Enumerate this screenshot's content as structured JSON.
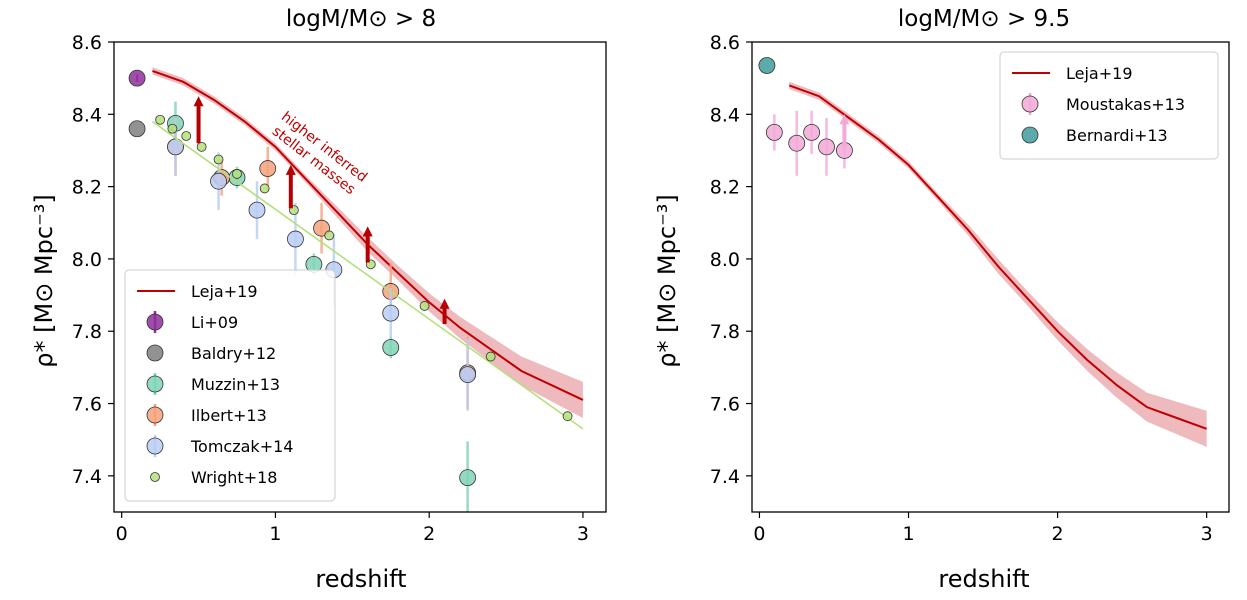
{
  "colors": {
    "leja": "#c00000",
    "leja_band": "#e9a3a8",
    "li09": "#8e2f9b",
    "baldry12": "#7f7f7f",
    "muzzin13": "#7fd3b7",
    "ilbert13": "#f4a27c",
    "tomczak14": "#b9cdf5",
    "wright18": "#b4e07a",
    "moustakas13": "#f3a9d8",
    "bernardi13": "#3e9c9c",
    "arrow_left": "#b40000",
    "arrow_right": "#f3a9d8"
  },
  "chart_data": [
    {
      "type": "scatter",
      "title": "logM/M⊙ > 8",
      "xlabel": "redshift",
      "ylabel": "ρ* [M⊙ Mpc⁻³]",
      "xlim": [
        -0.05,
        3.15
      ],
      "ylim": [
        7.3,
        8.6
      ],
      "xticks": [
        "0",
        "1",
        "2",
        "3"
      ],
      "yticks": [
        "7.4",
        "7.6",
        "7.8",
        "8.0",
        "8.2",
        "8.4",
        "8.6"
      ],
      "legend": "bottom-left",
      "annotation": [
        "higher inferred",
        "stellar masses"
      ],
      "series": [
        {
          "name": "Leja+19",
          "kind": "line",
          "color_key": "leja",
          "x": [
            0.2,
            0.4,
            0.6,
            0.8,
            1.0,
            1.2,
            1.4,
            1.6,
            1.8,
            2.0,
            2.2,
            2.4,
            2.6,
            2.8,
            3.0
          ],
          "y": [
            8.52,
            8.49,
            8.44,
            8.38,
            8.31,
            8.22,
            8.13,
            8.04,
            7.96,
            7.88,
            7.81,
            7.75,
            7.69,
            7.65,
            7.61
          ],
          "band": [
            0.01,
            0.01,
            0.01,
            0.01,
            0.01,
            0.01,
            0.015,
            0.02,
            0.02,
            0.025,
            0.03,
            0.035,
            0.04,
            0.045,
            0.05
          ]
        },
        {
          "name": "Li+09",
          "kind": "points",
          "color_key": "li09",
          "size": 8,
          "points": [
            {
              "x": 0.1,
              "y": 8.5,
              "err": 0.01
            }
          ]
        },
        {
          "name": "Baldry+12",
          "kind": "points",
          "color_key": "baldry12",
          "size": 8,
          "points": [
            {
              "x": 0.1,
              "y": 8.36,
              "err": 0.0
            }
          ]
        },
        {
          "name": "Muzzin+13",
          "kind": "points",
          "color_key": "muzzin13",
          "size": 8,
          "points": [
            {
              "x": 0.35,
              "y": 8.375,
              "err": 0.06
            },
            {
              "x": 0.75,
              "y": 8.225,
              "err": 0.03
            },
            {
              "x": 1.25,
              "y": 7.985,
              "err": 0.03
            },
            {
              "x": 1.75,
              "y": 7.755,
              "err": 0.03
            },
            {
              "x": 2.25,
              "y": 7.395,
              "err": 0.1
            }
          ]
        },
        {
          "name": "Ilbert+13",
          "kind": "points",
          "color_key": "ilbert13",
          "size": 8,
          "points": [
            {
              "x": 0.35,
              "y": 8.31,
              "err": 0.08
            },
            {
              "x": 0.65,
              "y": 8.225,
              "err": 0.05
            },
            {
              "x": 0.95,
              "y": 8.25,
              "err": 0.06
            },
            {
              "x": 1.3,
              "y": 8.085,
              "err": 0.07
            },
            {
              "x": 1.75,
              "y": 7.91,
              "err": 0.08
            },
            {
              "x": 2.25,
              "y": 7.685,
              "err": 0.1
            }
          ]
        },
        {
          "name": "Tomczak+14",
          "kind": "points",
          "color_key": "tomczak14",
          "size": 8,
          "points": [
            {
              "x": 0.35,
              "y": 8.31,
              "err": 0.08
            },
            {
              "x": 0.63,
              "y": 8.215,
              "err": 0.08
            },
            {
              "x": 0.88,
              "y": 8.135,
              "err": 0.08
            },
            {
              "x": 1.13,
              "y": 8.055,
              "err": 0.1
            },
            {
              "x": 1.38,
              "y": 7.97,
              "err": 0.1
            },
            {
              "x": 1.75,
              "y": 7.85,
              "err": 0.07
            },
            {
              "x": 2.25,
              "y": 7.68,
              "err": 0.1
            }
          ]
        },
        {
          "name": "Wright+18",
          "kind": "points_with_fit",
          "color_key": "wright18",
          "size": 4.5,
          "fit": {
            "x": [
              0.2,
              3.0
            ],
            "y": [
              8.38,
              7.53
            ]
          },
          "points": [
            {
              "x": 0.25,
              "y": 8.385
            },
            {
              "x": 0.33,
              "y": 8.36
            },
            {
              "x": 0.42,
              "y": 8.34
            },
            {
              "x": 0.52,
              "y": 8.31
            },
            {
              "x": 0.63,
              "y": 8.275
            },
            {
              "x": 0.75,
              "y": 8.235
            },
            {
              "x": 0.93,
              "y": 8.195
            },
            {
              "x": 1.12,
              "y": 8.135
            },
            {
              "x": 1.35,
              "y": 8.065
            },
            {
              "x": 1.62,
              "y": 7.985
            },
            {
              "x": 1.97,
              "y": 7.87
            },
            {
              "x": 2.4,
              "y": 7.73
            },
            {
              "x": 2.9,
              "y": 7.565
            }
          ]
        },
        {
          "name": "",
          "kind": "arrows",
          "color_key": "arrow_left",
          "points": [
            {
              "x": 0.5,
              "y0": 8.32,
              "y1": 8.45
            },
            {
              "x": 1.1,
              "y0": 8.14,
              "y1": 8.26
            },
            {
              "x": 1.6,
              "y0": 7.99,
              "y1": 8.09
            },
            {
              "x": 2.1,
              "y0": 7.82,
              "y1": 7.89
            }
          ]
        }
      ]
    },
    {
      "type": "scatter",
      "title": "logM/M⊙ > 9.5",
      "xlabel": "redshift",
      "ylabel": "ρ* [M⊙ Mpc⁻³]",
      "xlim": [
        -0.05,
        3.15
      ],
      "ylim": [
        7.3,
        8.6
      ],
      "xticks": [
        "0",
        "1",
        "2",
        "3"
      ],
      "yticks": [
        "7.4",
        "7.6",
        "7.8",
        "8.0",
        "8.2",
        "8.4",
        "8.6"
      ],
      "legend": "top-right",
      "series": [
        {
          "name": "Leja+19",
          "kind": "line",
          "color_key": "leja",
          "x": [
            0.2,
            0.4,
            0.6,
            0.8,
            1.0,
            1.2,
            1.4,
            1.6,
            1.8,
            2.0,
            2.2,
            2.4,
            2.6,
            2.8,
            3.0
          ],
          "y": [
            8.48,
            8.45,
            8.39,
            8.33,
            8.26,
            8.17,
            8.08,
            7.98,
            7.89,
            7.8,
            7.72,
            7.65,
            7.59,
            7.56,
            7.53
          ],
          "band": [
            0.01,
            0.01,
            0.01,
            0.01,
            0.01,
            0.01,
            0.015,
            0.02,
            0.02,
            0.025,
            0.03,
            0.035,
            0.04,
            0.045,
            0.05
          ]
        },
        {
          "name": "Moustakas+13",
          "kind": "points",
          "color_key": "moustakas13",
          "size": 8,
          "points": [
            {
              "x": 0.1,
              "y": 8.35,
              "err": 0.05
            },
            {
              "x": 0.25,
              "y": 8.32,
              "err": 0.09
            },
            {
              "x": 0.35,
              "y": 8.35,
              "err": 0.06
            },
            {
              "x": 0.45,
              "y": 8.31,
              "err": 0.08
            },
            {
              "x": 0.57,
              "y": 8.3,
              "err": 0.05
            }
          ]
        },
        {
          "name": "Bernardi+13",
          "kind": "points",
          "color_key": "bernardi13",
          "size": 8,
          "points": [
            {
              "x": 0.05,
              "y": 8.535,
              "err": 0
            }
          ]
        },
        {
          "name": "",
          "kind": "arrows",
          "color_key": "arrow_right",
          "points": [
            {
              "x": 0.57,
              "y0": 8.31,
              "y1": 8.4
            }
          ]
        }
      ]
    }
  ]
}
